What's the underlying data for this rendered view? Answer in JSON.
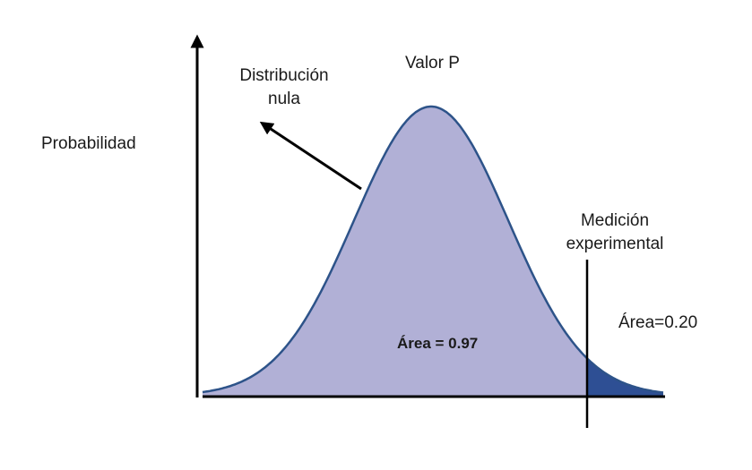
{
  "labels": {
    "y_axis": "Probabilidad",
    "title": "Valor P",
    "null_distribution_line1": "Distribución",
    "null_distribution_line2": "nula",
    "measurement_line1": "Medición",
    "measurement_line2": "experimental",
    "area_left": "Área = 0.97",
    "area_right": "Área=0.20"
  },
  "colors": {
    "curve_fill": "#b1b0d6",
    "tail_fill": "#2e4f94",
    "curve_stroke": "#2d5389",
    "axis": "#000000"
  }
}
